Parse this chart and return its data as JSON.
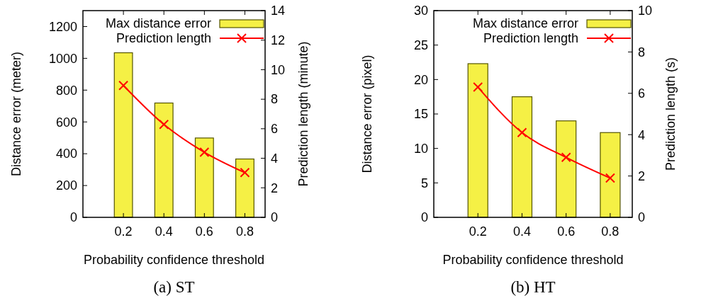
{
  "chart_data": [
    {
      "type": "bar",
      "title": "(a) ST",
      "xlabel": "Probability confidence threshold",
      "ylabel": "Distance error (meter)",
      "y2label": "Prediction length (minute)",
      "x": [
        0.2,
        0.4,
        0.6,
        0.8
      ],
      "xlim": [
        0,
        0.9
      ],
      "xticks": [
        0.2,
        0.4,
        0.6,
        0.8
      ],
      "ylim": [
        0,
        1300
      ],
      "yticks": [
        0,
        200,
        400,
        600,
        800,
        1000,
        1200
      ],
      "y2lim": [
        0,
        14
      ],
      "y2ticks": [
        0,
        2,
        4,
        6,
        8,
        10,
        12,
        14
      ],
      "legend": "top right",
      "marker": "cross",
      "series": [
        {
          "name": "Max distance error",
          "color": "#f5f045",
          "values": [
            1035,
            719,
            499,
            367
          ]
        },
        {
          "name": "Prediction length",
          "type": "line",
          "axis": "y2",
          "color": "#ff0000",
          "values": [
            8.93,
            6.29,
            4.41,
            3.03
          ]
        }
      ]
    },
    {
      "type": "bar",
      "title": "(b) HT",
      "xlabel": "Probability confidence threshold",
      "ylabel": "Distance error (pixel)",
      "y2label": "Prediction length (s)",
      "x": [
        0.2,
        0.4,
        0.6,
        0.8
      ],
      "xlim": [
        0,
        0.9
      ],
      "xticks": [
        0.2,
        0.4,
        0.6,
        0.8
      ],
      "ylim": [
        0,
        30
      ],
      "yticks": [
        0,
        5,
        10,
        15,
        20,
        25,
        30
      ],
      "y2lim": [
        0,
        10
      ],
      "y2ticks": [
        0,
        2,
        4,
        6,
        8,
        10
      ],
      "legend": "top right",
      "marker": "cross",
      "series": [
        {
          "name": "Max distance error",
          "color": "#f5f045",
          "values": [
            22.3,
            17.5,
            14.0,
            12.3
          ]
        },
        {
          "name": "Prediction length",
          "type": "line",
          "axis": "y2",
          "color": "#ff0000",
          "values": [
            6.3,
            4.1,
            2.9,
            1.9
          ]
        }
      ]
    }
  ]
}
